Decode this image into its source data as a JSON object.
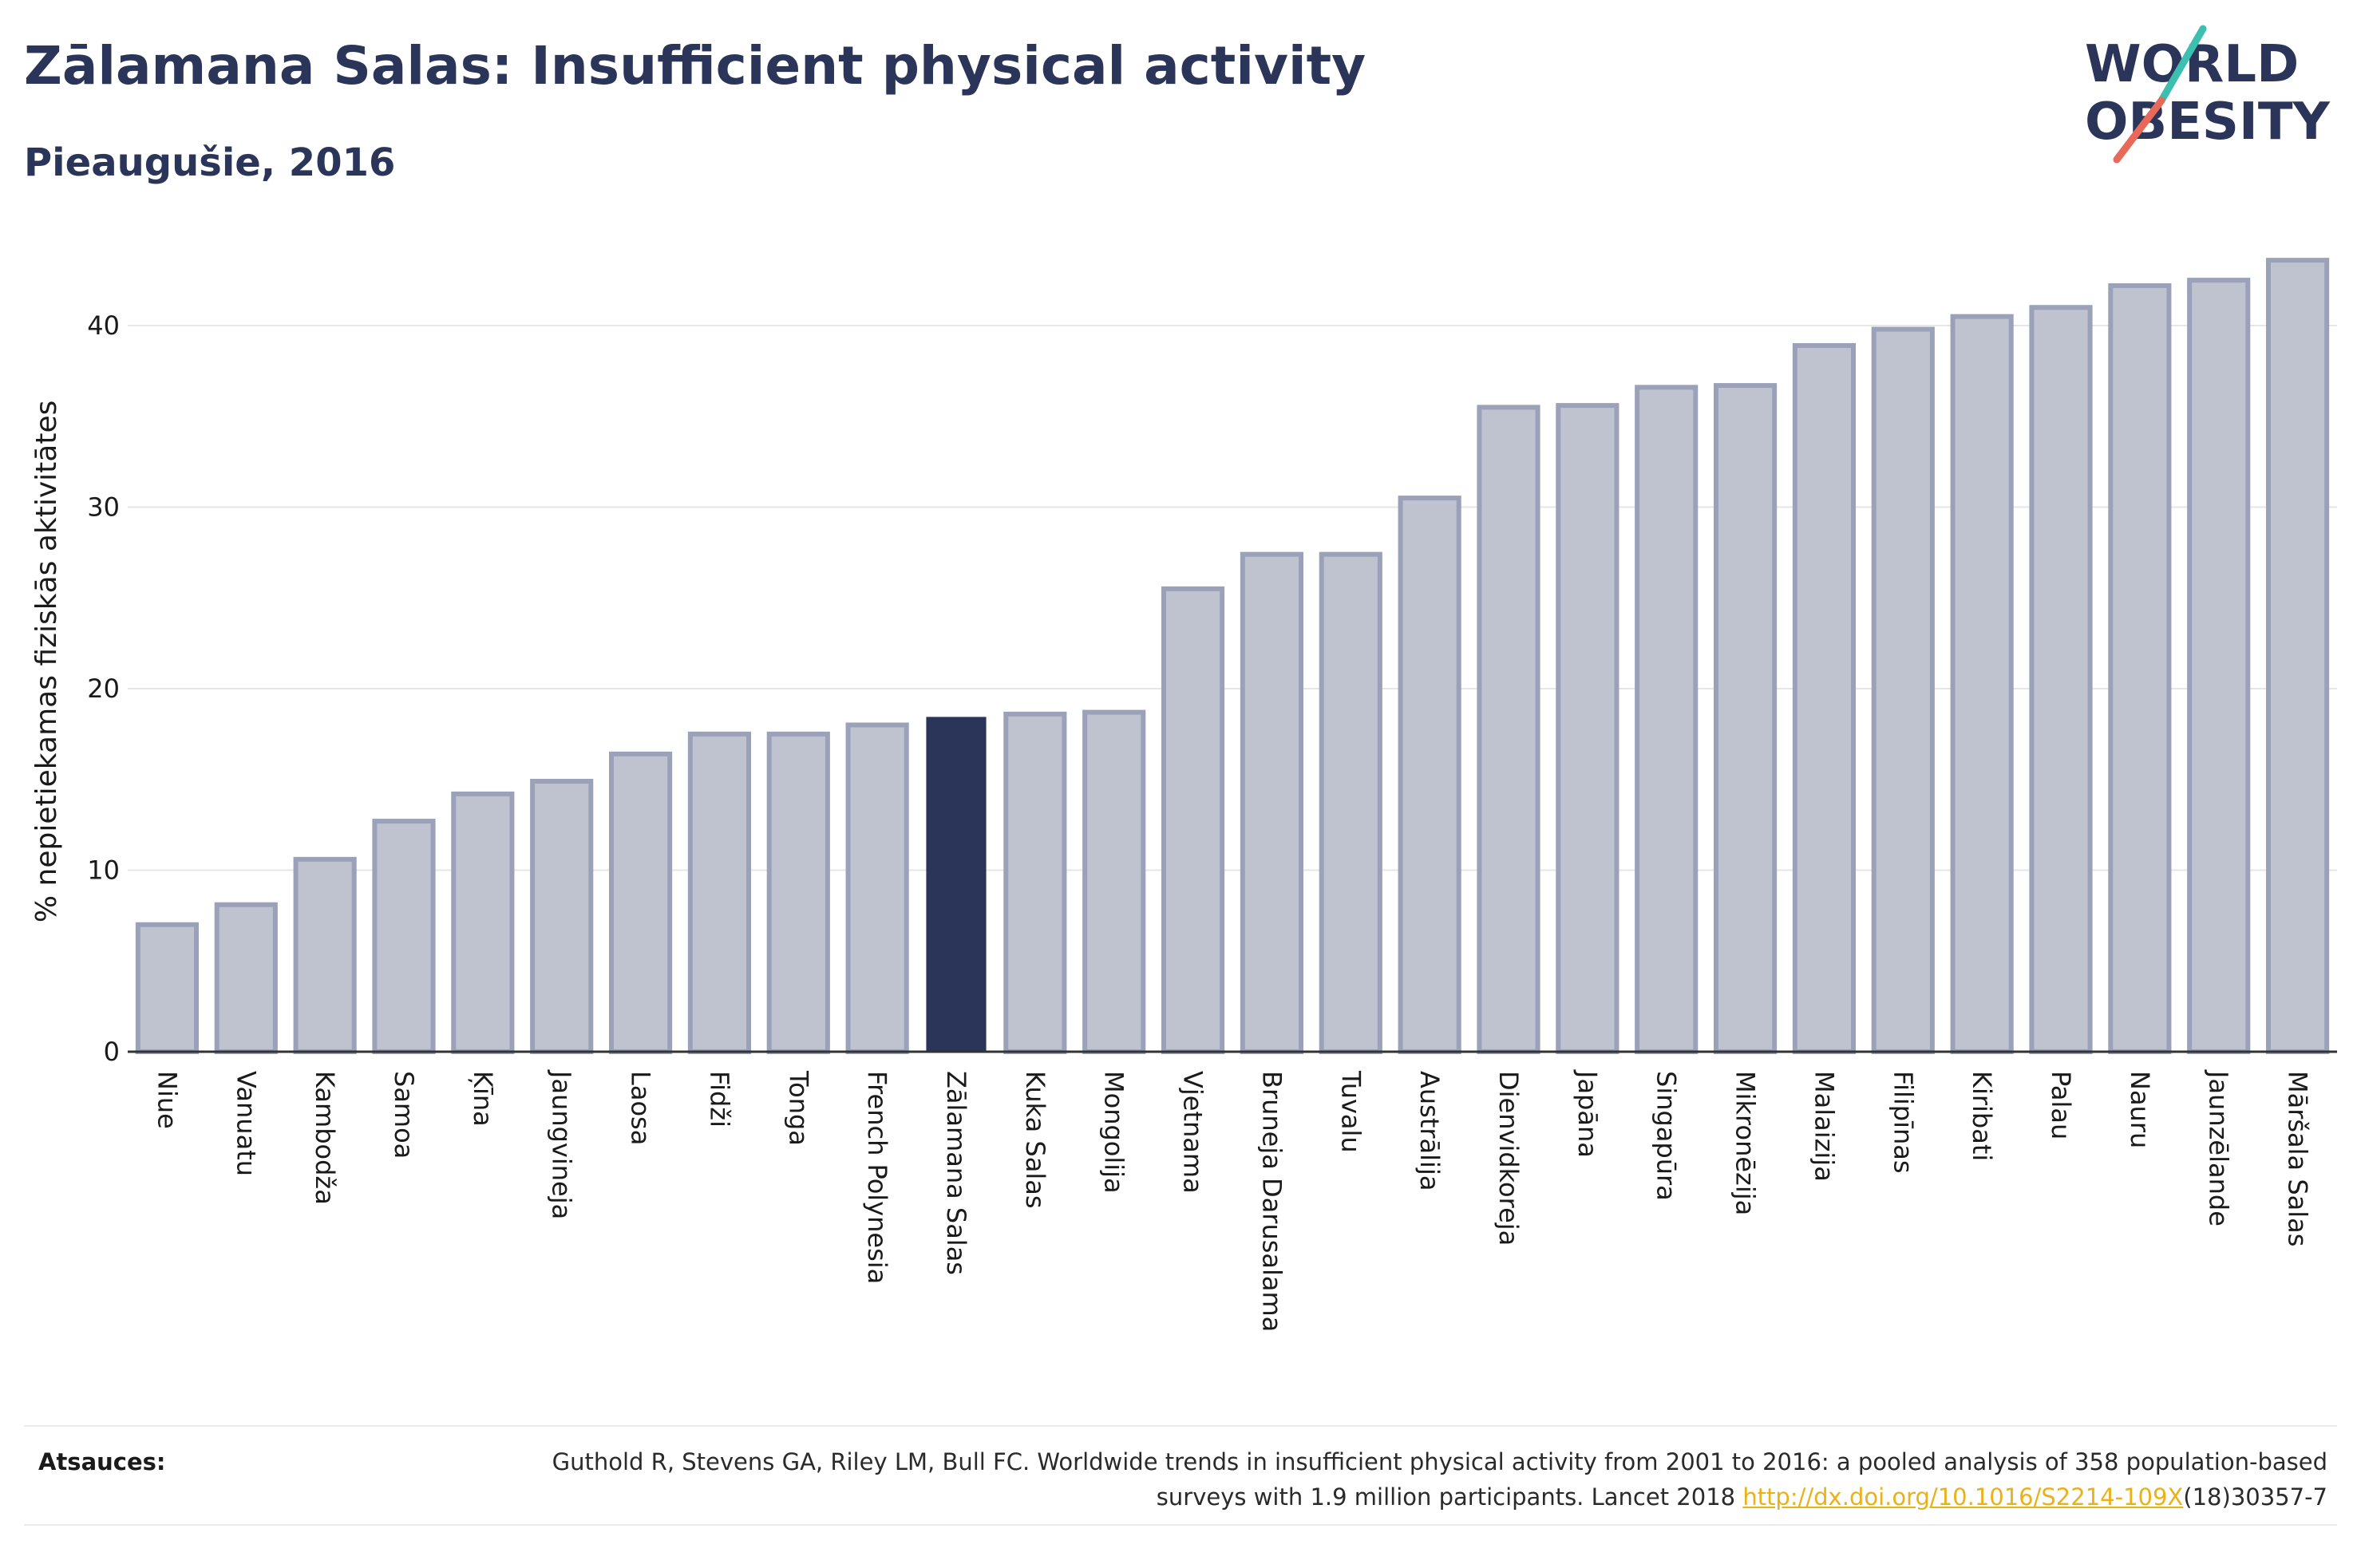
{
  "header": {
    "title": "Zālamana Salas: Insufficient physical activity",
    "subtitle": "Pieaugušie, 2016"
  },
  "logo": {
    "line1": "WORLD",
    "line2": "OBESITY",
    "text_color": "#2b3559",
    "slash_colors": [
      "#3cbfae",
      "#e8695a"
    ]
  },
  "chart_data": {
    "type": "bar",
    "ylabel": "% nepietiekamas fiziskās aktivitātes",
    "xlabel": "",
    "ylim": [
      0,
      45
    ],
    "yticks": [
      0,
      10,
      20,
      30,
      40
    ],
    "grid": true,
    "highlight": "Zālamana Salas",
    "colors": {
      "default_fill": "#bfc3d0",
      "default_stroke": "#9aa1b8",
      "highlight_fill": "#2b3559"
    },
    "categories": [
      "Niue",
      "Vanuatu",
      "Kambodža",
      "Samoa",
      "Ķīna",
      "Jaungvineja",
      "Laosa",
      "Fidži",
      "Tonga",
      "French Polynesia",
      "Zālamana Salas",
      "Kuka Salas",
      "Mongolija",
      "Vjetnama",
      "Bruneja Darusalama",
      "Tuvalu",
      "Austrālija",
      "Dienvidkoreja",
      "Japāna",
      "Singapūra",
      "Mikronēzija",
      "Malaizija",
      "Filipīnas",
      "Kiribati",
      "Palau",
      "Nauru",
      "Jaunzēlande",
      "Māršala Salas"
    ],
    "values": [
      7.0,
      8.1,
      10.6,
      12.7,
      14.2,
      14.9,
      16.4,
      17.5,
      17.5,
      18.0,
      18.4,
      18.6,
      18.7,
      25.5,
      27.4,
      27.4,
      30.5,
      35.5,
      35.6,
      36.6,
      36.7,
      38.9,
      39.8,
      40.5,
      41.0,
      42.2,
      42.5,
      43.6
    ]
  },
  "footer": {
    "sources_label": "Atsauces:",
    "citation_part1": "Guthold R, Stevens GA, Riley LM, Bull FC. Worldwide trends in insufficient physical activity from 2001 to 2016: a pooled analysis of 358 population-based surveys with 1.9 million participants. Lancet 2018 ",
    "citation_link": "http://dx.doi.org/10.1016/S2214-109X",
    "citation_part2": "(18)30357-7"
  }
}
